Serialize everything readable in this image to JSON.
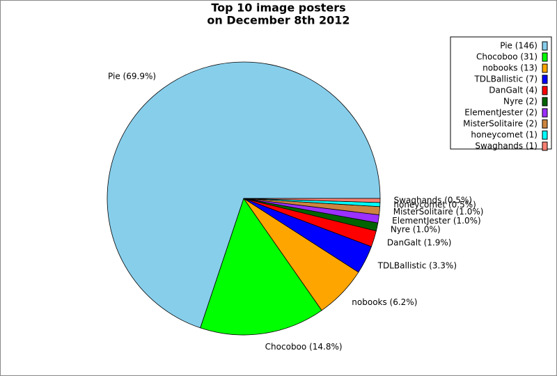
{
  "chart_data": {
    "type": "pie",
    "title": [
      "Top 10 image posters",
      "on December 8th 2012"
    ],
    "categories": [
      "Pie",
      "Chocoboo",
      "nobooks",
      "TDLBallistic",
      "DanGalt",
      "Nyre",
      "ElementJester",
      "MisterSolitaire",
      "honeycomet",
      "Swaghands"
    ],
    "values": [
      146,
      31,
      13,
      7,
      4,
      2,
      2,
      2,
      1,
      1
    ],
    "slice_labels": [
      "Pie (69.9%)",
      "Chocoboo (14.8%)",
      "nobooks (6.2%)",
      "TDLBallistic (3.3%)",
      "DanGalt (1.9%)",
      "Nyre (1.0%)",
      "ElementJester (1.0%)",
      "MisterSolitaire (1.0%)",
      "honeycomet (0.5%)",
      "Swaghands (0.5%)"
    ],
    "legend_labels": [
      "Pie (146)",
      "Chocoboo (31)",
      "nobooks (13)",
      "TDLBallistic (7)",
      "DanGalt (4)",
      "Nyre (2)",
      "ElementJester (2)",
      "MisterSolitaire (2)",
      "honeycomet (1)",
      "Swaghands (1)"
    ],
    "colors": [
      "#87ceeb",
      "#00ff00",
      "#ffa500",
      "#0000ff",
      "#ff0000",
      "#006400",
      "#9b30ff",
      "#cd853f",
      "#00ffff",
      "#fa8072"
    ],
    "legend": "upper right"
  }
}
